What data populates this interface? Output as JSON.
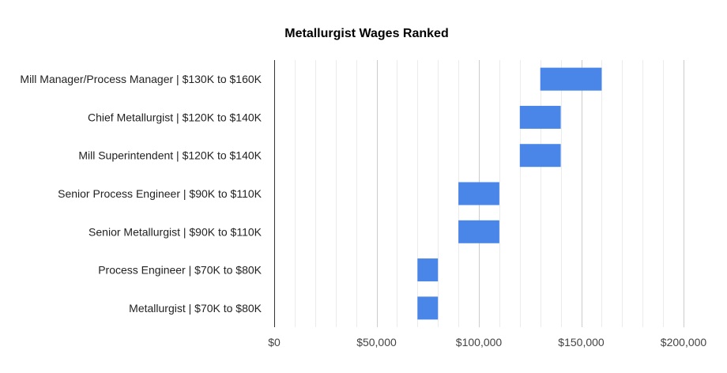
{
  "chart_data": {
    "type": "bar",
    "orientation": "horizontal-range",
    "title": "Metallurgist Wages Ranked",
    "xlabel": "",
    "ylabel": "",
    "xlim": [
      0,
      200000
    ],
    "x_ticks": [
      0,
      50000,
      100000,
      150000,
      200000
    ],
    "x_tick_labels": [
      "$0",
      "$50,000",
      "$100,000",
      "$150,000",
      "$200,000"
    ],
    "minor_step": 10000,
    "grid": true,
    "bar_color": "#4a86e8",
    "categories": [
      "Mill Manager/Process Manager | $130K to $160K",
      "Chief Metallurgist | $120K to $140K",
      "Mill Superintendent | $120K to $140K",
      "Senior Process Engineer | $90K to $110K",
      "Senior Metallurgist | $90K to $110K",
      "Process Engineer | $70K to $80K",
      "Metallurgist | $70K to $80K"
    ],
    "ranges": [
      [
        130000,
        160000
      ],
      [
        120000,
        140000
      ],
      [
        120000,
        140000
      ],
      [
        90000,
        110000
      ],
      [
        90000,
        110000
      ],
      [
        70000,
        80000
      ],
      [
        70000,
        80000
      ]
    ]
  }
}
